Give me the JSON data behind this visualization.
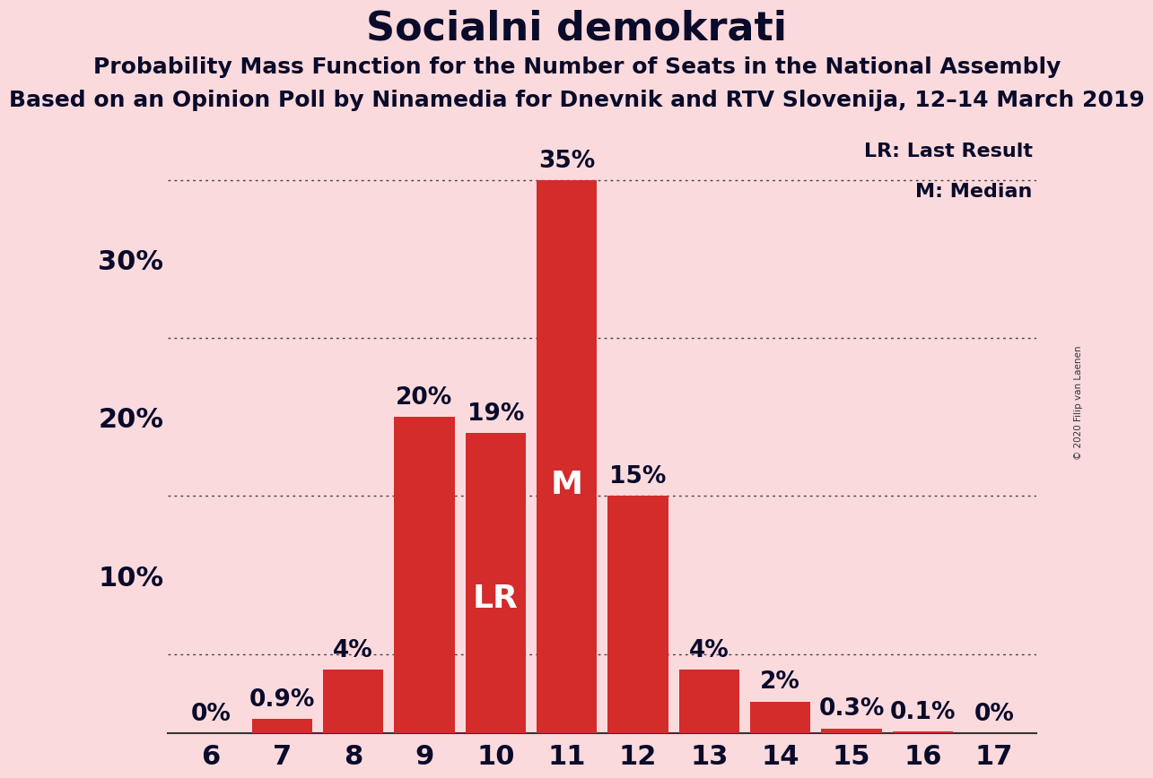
{
  "title": "Socialni demokrati",
  "subtitle1": "Probability Mass Function for the Number of Seats in the National Assembly",
  "subtitle2": "Based on an Opinion Poll by Ninamedia for Dnevnik and RTV Slovenija, 12–14 March 2019",
  "copyright": "© 2020 Filip van Laenen",
  "categories": [
    6,
    7,
    8,
    9,
    10,
    11,
    12,
    13,
    14,
    15,
    16,
    17
  ],
  "values": [
    0.0,
    0.9,
    4.0,
    20.0,
    19.0,
    35.0,
    15.0,
    4.0,
    2.0,
    0.3,
    0.1,
    0.0
  ],
  "bar_color": "#d42b2b",
  "background_color": "#fadadd",
  "label_color_dark": "#0a0a2a",
  "label_color_white": "#ffffff",
  "bar_labels": [
    "0%",
    "0.9%",
    "4%",
    "20%",
    "19%",
    "35%",
    "15%",
    "4%",
    "2%",
    "0.3%",
    "0.1%",
    "0%"
  ],
  "LR_bar": 10,
  "M_bar": 11,
  "yticks_labeled": [
    10,
    20,
    30
  ],
  "ytick_labels": [
    "10%",
    "20%",
    "30%"
  ],
  "yticks_dotted": [
    5,
    15,
    25,
    35
  ],
  "ylim": [
    0,
    38
  ],
  "legend_lr": "LR: Last Result",
  "legend_m": "M: Median",
  "title_fontsize": 32,
  "subtitle1_fontsize": 18,
  "subtitle2_fontsize": 18,
  "axis_label_fontsize": 22,
  "bar_label_fontsize": 19,
  "inside_label_fontsize": 26,
  "ytick_label_fontsize": 22
}
